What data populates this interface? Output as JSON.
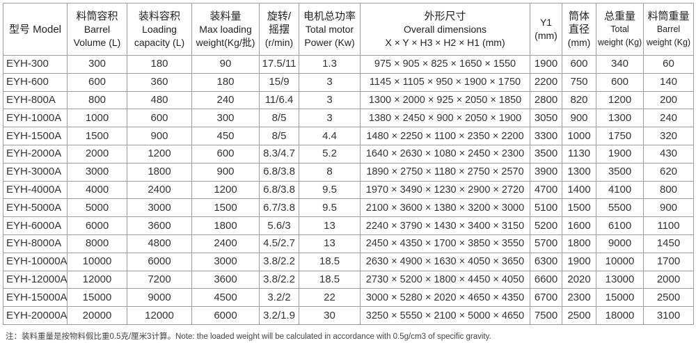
{
  "table": {
    "headers": [
      [
        "型号 Model"
      ],
      [
        "料筒容积",
        "Barrel",
        "Volume (L)"
      ],
      [
        "装料容积",
        "Loading",
        "capacity (L)"
      ],
      [
        "装料量",
        "Max loading",
        "weight(Kg/批)"
      ],
      [
        "旋转/",
        "摇摆",
        "(r/min)"
      ],
      [
        "电机总功率",
        "Total motor",
        "Power (Kw)"
      ],
      [
        "外形尺寸",
        "Overall dimensions",
        "X × Y × H3 × H2 × H1 (mm)"
      ],
      [
        "Y1",
        "(mm)"
      ],
      [
        "筒体",
        "直径",
        "(mm)"
      ],
      [
        "总重量",
        "Total",
        "weight (Kg)"
      ],
      [
        "料筒重量",
        "Barrel",
        "weight (Kg)"
      ]
    ],
    "rows": [
      [
        "EYH-300",
        "300",
        "180",
        "90",
        "17.5/11",
        "1.3",
        "975 × 905 × 825 × 1650 × 1550",
        "1900",
        "600",
        "340",
        "60"
      ],
      [
        "EYH-600",
        "600",
        "360",
        "180",
        "15/9",
        "3",
        "1145 × 1105 × 950 × 1900 × 1750",
        "2200",
        "750",
        "600",
        "140"
      ],
      [
        "EYH-800A",
        "800",
        "480",
        "240",
        "11/6.4",
        "3",
        "1300 × 2000 × 925 × 2050 × 1850",
        "2800",
        "820",
        "1200",
        "200"
      ],
      [
        "EYH-1000A",
        "1000",
        "600",
        "300",
        "8/5",
        "3",
        "1380 × 2450 × 900 × 2050 × 1900",
        "3050",
        "900",
        "1300",
        "240"
      ],
      [
        "EYH-1500A",
        "1500",
        "900",
        "450",
        "8/5",
        "4.4",
        "1480 × 2250 × 1100 × 2350 × 2200",
        "3300",
        "1000",
        "1750",
        "320"
      ],
      [
        "EYH-2000A",
        "2000",
        "1200",
        "600",
        "8.3/4.7",
        "5.2",
        "1640 × 2630 × 1080 × 2450 × 2300",
        "3500",
        "1130",
        "1900",
        "430"
      ],
      [
        "EYH-3000A",
        "3000",
        "1800",
        "900",
        "6.8/3.8",
        "8",
        "1890 × 2750 × 1180 × 2750 × 2570",
        "3900",
        "1300",
        "3500",
        "620"
      ],
      [
        "EYH-4000A",
        "4000",
        "2400",
        "1200",
        "6.8/3.8",
        "9.5",
        "1970 × 3490 × 1230 × 2900 × 2720",
        "4700",
        "1400",
        "4100",
        "800"
      ],
      [
        "EYH-5000A",
        "5000",
        "3000",
        "1500",
        "6.7/3.8",
        "9.5",
        "2100 × 3600 × 1380 × 3200 × 3000",
        "5100",
        "1500",
        "5500",
        "900"
      ],
      [
        "EYH-6000A",
        "6000",
        "3600",
        "1800",
        "5.6/3",
        "13",
        "2240 × 3790 × 1430 × 3400 × 3150",
        "5200",
        "1600",
        "6100",
        "1100"
      ],
      [
        "EYH-8000A",
        "8000",
        "4800",
        "2400",
        "4.5/2.7",
        "13",
        "2450 × 4350 × 1700 × 3850 × 3550",
        "5700",
        "1800",
        "9000",
        "1450"
      ],
      [
        "EYH-10000A",
        "10000",
        "6000",
        "3000",
        "3.8/2.2",
        "18.5",
        "2630 × 4900 × 1630 × 4050 × 3650",
        "6300",
        "1900",
        "10000",
        "1700"
      ],
      [
        "EYH-12000A",
        "12000",
        "7200",
        "3600",
        "3.8/2.2",
        "18.5",
        "2730 × 5200 × 1800 × 4450 × 4050",
        "6600",
        "2020",
        "13000",
        "2000"
      ],
      [
        "EYH-15000A",
        "15000",
        "9000",
        "4500",
        "3.2/2",
        "22",
        "3000 × 5280 × 2020 × 4650 × 4350",
        "6700",
        "2300",
        "15000",
        "2500"
      ],
      [
        "EYH-20000A",
        "20000",
        "12000",
        "6000",
        "3.2/1.9",
        "30",
        "3250 × 5550 × 2100 × 5000 × 4650",
        "7500",
        "2500",
        "18000",
        "3100"
      ]
    ]
  },
  "footnote": "注：装料重量是按物料假比重0.5克/厘米3计算。Note: the loaded weight will be calculated in accordance with 0.5g/cm3 of specific gravity.",
  "colors": {
    "grid": "#9c9c9c",
    "text": "#333333"
  }
}
